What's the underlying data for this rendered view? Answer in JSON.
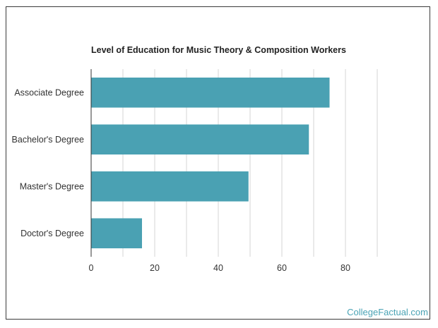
{
  "chart_data": {
    "type": "bar",
    "orientation": "horizontal",
    "title": "Level of Education for Music Theory & Composition Workers",
    "categories": [
      "Associate Degree",
      "Bachelor's Degree",
      "Master's Degree",
      "Doctor's Degree"
    ],
    "values": [
      75,
      68.5,
      49.5,
      16
    ],
    "xlim": [
      0,
      90
    ],
    "xticks": [
      0,
      20,
      40,
      60,
      80
    ],
    "grid": true,
    "legend": "none",
    "bar_color": "#4aa1b3"
  },
  "watermark": "CollegeFactual.com"
}
